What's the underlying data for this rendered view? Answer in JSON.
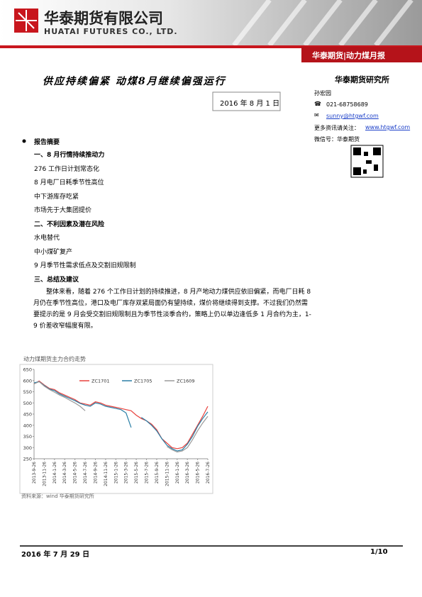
{
  "header": {
    "company_cn": "华泰期货有限公司",
    "company_en": "HUATAI FUTURES CO., LTD.",
    "banner": "华泰期货|动力煤月报"
  },
  "report": {
    "title": "供应持续偏紧  动煤8月继续偏强运行",
    "date": "2016 年 8 月 1 日"
  },
  "sidebar": {
    "org": "华泰期货研究所",
    "author": "孙宏园",
    "phone": "021-68758689",
    "email": "sunny@htgwf.com",
    "follow_label": "更多资讯请关注：",
    "website": "www.htgwf.com",
    "wechat": "微信号：华泰期货"
  },
  "summary": {
    "heading": "报告摘要",
    "sections": [
      {
        "heading": "一、8 月行情持续推动力",
        "items": [
          "276 工作日计划常态化",
          "8 月电厂日耗季节性高位",
          "中下游库存吃紧",
          "市场先于大集团提价"
        ]
      },
      {
        "heading": "二、不利因素及潜在风险",
        "items": [
          "水电替代",
          "中小煤矿复产",
          "9 月季节性需求低点及交割旧规限制"
        ]
      },
      {
        "heading": "三、总结及建议",
        "paragraph": "整体来看，随着 276 个工作日计划的持续推进，8 月产地动力煤供应依旧偏紧，而电厂日耗 8 月仍在季节性高位，港口及电厂库存双紧局面仍有望持续，煤价将继续得到支撑。不过我们仍然需要提示的是 9 月会受交割旧规限制且为季节性淡季合约，策略上仍以单边逢低多 1 月合约为主，1-9 价差收窄幅度有限。"
      }
    ]
  },
  "chart_data": {
    "type": "line",
    "title": "动力煤期货主力合约走势",
    "source": "资料来源：wind    华泰期货研究所",
    "categories": [
      "2013-9-26",
      null,
      "2013-11-26",
      null,
      "2014-1-26",
      null,
      "2014-3-26",
      null,
      "2014-5-26",
      null,
      "2014-7-26",
      null,
      "2014-9-26",
      null,
      "2014-11-26",
      null,
      "2015-1-26",
      null,
      "2015-3-26",
      null,
      "2015-5-26",
      null,
      "2015-7-26",
      null,
      "2015-9-26",
      null,
      "2015-11-26",
      null,
      "2016-1-26",
      null,
      "2016-3-26",
      null,
      "2016-5-26",
      null,
      "2016-7-26"
    ],
    "series": [
      {
        "name": "ZC1701",
        "color": "#e8413c",
        "values": [
          585,
          598,
          580,
          565,
          560,
          545,
          535,
          525,
          515,
          500,
          495,
          490,
          505,
          500,
          490,
          485,
          480,
          475,
          470,
          465,
          445,
          430,
          420,
          405,
          380,
          340,
          320,
          300,
          295,
          300,
          320,
          360,
          400,
          440,
          485
        ]
      },
      {
        "name": "ZC1705",
        "color": "#2a7fa6",
        "values": [
          590,
          595,
          578,
          562,
          555,
          540,
          530,
          520,
          510,
          498,
          490,
          485,
          500,
          495,
          485,
          480,
          475,
          470,
          455,
          390,
          null,
          435,
          420,
          400,
          375,
          340,
          310,
          295,
          285,
          290,
          315,
          350,
          395,
          430,
          460
        ]
      },
      {
        "name": "ZC1609",
        "color": "#9a9a9a",
        "values": [
          585,
          595,
          575,
          560,
          548,
          535,
          525,
          512,
          500,
          485,
          465,
          null,
          null,
          null,
          null,
          null,
          null,
          null,
          null,
          null,
          null,
          null,
          null,
          null,
          null,
          null,
          305,
          290,
          280,
          285,
          300,
          335,
          375,
          410,
          440
        ]
      }
    ],
    "ylim": [
      250,
      650
    ],
    "yticks": [
      250,
      300,
      350,
      400,
      450,
      500,
      550,
      600,
      650
    ]
  },
  "footer": {
    "date": "2016 年 7 月 29 日",
    "page": "1/10"
  }
}
